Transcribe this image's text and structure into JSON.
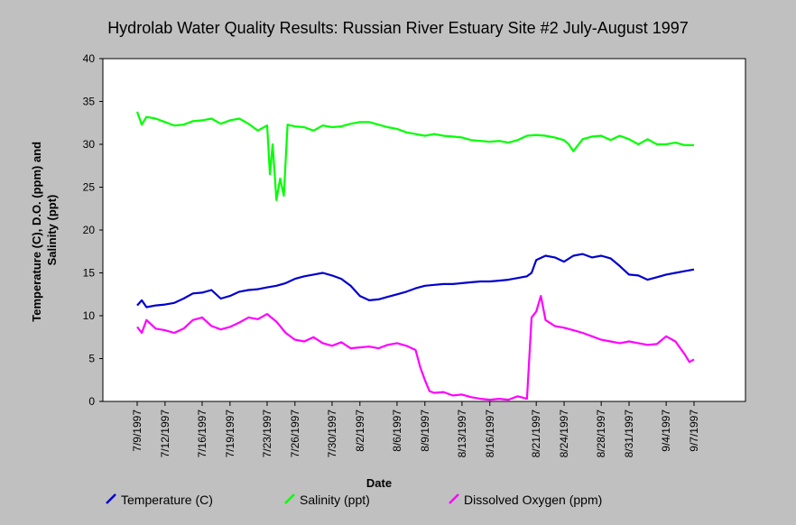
{
  "chart_data": {
    "type": "line",
    "title": "Hydrolab Water Quality Results: Russian River Estuary Site #2 July-August 1997",
    "xlabel": "Date",
    "ylabel_lines": [
      "Temperature (C), D.O. (ppm) and",
      "Salinity (ppt)"
    ],
    "ylim": [
      0,
      40
    ],
    "yticks": [
      "0",
      "5",
      "10",
      "15",
      "20",
      "25",
      "30",
      "35",
      "40"
    ],
    "xlim_days": [
      0,
      63
    ],
    "grid": false,
    "legend_position": "bottom",
    "xticks": [
      {
        "day": 0,
        "label": "7/9/1997"
      },
      {
        "day": 3,
        "label": "7/12/1997"
      },
      {
        "day": 7,
        "label": "7/16/1997"
      },
      {
        "day": 10,
        "label": "7/19/1997"
      },
      {
        "day": 14,
        "label": "7/23/1997"
      },
      {
        "day": 17,
        "label": "7/26/1997"
      },
      {
        "day": 21,
        "label": "7/30/1997"
      },
      {
        "day": 24,
        "label": "8/2/1997"
      },
      {
        "day": 28,
        "label": "8/6/1997"
      },
      {
        "day": 31,
        "label": "8/9/1997"
      },
      {
        "day": 35,
        "label": "8/13/1997"
      },
      {
        "day": 38,
        "label": "8/16/1997"
      },
      {
        "day": 43,
        "label": "8/21/1997"
      },
      {
        "day": 46,
        "label": "8/24/1997"
      },
      {
        "day": 50,
        "label": "8/28/1997"
      },
      {
        "day": 53,
        "label": "8/31/1997"
      },
      {
        "day": 57,
        "label": "9/4/1997"
      },
      {
        "day": 60,
        "label": "9/7/1997"
      }
    ],
    "series": [
      {
        "name": "Temperature (C)",
        "color": "#0000cc",
        "points": [
          [
            0,
            11.2
          ],
          [
            0.5,
            11.8
          ],
          [
            1,
            11.0
          ],
          [
            2,
            11.2
          ],
          [
            3,
            11.3
          ],
          [
            4,
            11.5
          ],
          [
            5,
            12.0
          ],
          [
            6,
            12.6
          ],
          [
            7,
            12.7
          ],
          [
            8,
            13.0
          ],
          [
            9,
            12.0
          ],
          [
            10,
            12.3
          ],
          [
            11,
            12.8
          ],
          [
            12,
            13.0
          ],
          [
            13,
            13.1
          ],
          [
            14,
            13.3
          ],
          [
            15,
            13.5
          ],
          [
            16,
            13.8
          ],
          [
            17,
            14.3
          ],
          [
            18,
            14.6
          ],
          [
            19,
            14.8
          ],
          [
            20,
            15.0
          ],
          [
            21,
            14.7
          ],
          [
            22,
            14.3
          ],
          [
            23,
            13.5
          ],
          [
            24,
            12.3
          ],
          [
            25,
            11.8
          ],
          [
            26,
            11.9
          ],
          [
            27,
            12.2
          ],
          [
            28,
            12.5
          ],
          [
            29,
            12.8
          ],
          [
            30,
            13.2
          ],
          [
            31,
            13.5
          ],
          [
            32,
            13.6
          ],
          [
            33,
            13.7
          ],
          [
            34,
            13.7
          ],
          [
            35,
            13.8
          ],
          [
            36,
            13.9
          ],
          [
            37,
            14.0
          ],
          [
            38,
            14.0
          ],
          [
            39,
            14.1
          ],
          [
            40,
            14.2
          ],
          [
            41,
            14.4
          ],
          [
            42,
            14.6
          ],
          [
            42.5,
            15.0
          ],
          [
            43,
            16.5
          ],
          [
            44,
            17.0
          ],
          [
            45,
            16.8
          ],
          [
            46,
            16.3
          ],
          [
            47,
            17.0
          ],
          [
            48,
            17.2
          ],
          [
            49,
            16.8
          ],
          [
            50,
            17.0
          ],
          [
            51,
            16.7
          ],
          [
            52,
            15.8
          ],
          [
            53,
            14.8
          ],
          [
            54,
            14.7
          ],
          [
            55,
            14.2
          ],
          [
            56,
            14.5
          ],
          [
            57,
            14.8
          ],
          [
            58,
            15.0
          ],
          [
            59,
            15.2
          ],
          [
            60,
            15.4
          ]
        ]
      },
      {
        "name": "Salinity (ppt)",
        "color": "#00ff00",
        "points": [
          [
            0,
            33.8
          ],
          [
            0.5,
            32.3
          ],
          [
            1,
            33.2
          ],
          [
            2,
            33.0
          ],
          [
            3,
            32.6
          ],
          [
            4,
            32.2
          ],
          [
            5,
            32.3
          ],
          [
            6,
            32.7
          ],
          [
            7,
            32.8
          ],
          [
            8,
            33.0
          ],
          [
            9,
            32.4
          ],
          [
            10,
            32.8
          ],
          [
            11,
            33.0
          ],
          [
            12,
            32.4
          ],
          [
            13,
            31.6
          ],
          [
            14,
            32.2
          ],
          [
            14.3,
            26.5
          ],
          [
            14.6,
            30.0
          ],
          [
            15,
            23.5
          ],
          [
            15.4,
            26.0
          ],
          [
            15.8,
            24.0
          ],
          [
            16.2,
            32.3
          ],
          [
            17,
            32.1
          ],
          [
            18,
            32.0
          ],
          [
            19,
            31.6
          ],
          [
            20,
            32.2
          ],
          [
            21,
            32.0
          ],
          [
            22,
            32.1
          ],
          [
            23,
            32.4
          ],
          [
            24,
            32.6
          ],
          [
            25,
            32.6
          ],
          [
            26,
            32.3
          ],
          [
            27,
            32.0
          ],
          [
            28,
            31.8
          ],
          [
            29,
            31.4
          ],
          [
            30,
            31.2
          ],
          [
            31,
            31.0
          ],
          [
            32,
            31.2
          ],
          [
            33,
            31.0
          ],
          [
            34,
            30.9
          ],
          [
            35,
            30.8
          ],
          [
            36,
            30.5
          ],
          [
            37,
            30.4
          ],
          [
            38,
            30.3
          ],
          [
            39,
            30.4
          ],
          [
            40,
            30.2
          ],
          [
            41,
            30.5
          ],
          [
            42,
            31.0
          ],
          [
            43,
            31.1
          ],
          [
            44,
            31.0
          ],
          [
            45,
            30.8
          ],
          [
            46,
            30.5
          ],
          [
            46.5,
            30.0
          ],
          [
            47,
            29.2
          ],
          [
            48,
            30.6
          ],
          [
            49,
            30.9
          ],
          [
            50,
            31.0
          ],
          [
            51,
            30.5
          ],
          [
            52,
            31.0
          ],
          [
            53,
            30.6
          ],
          [
            54,
            30.0
          ],
          [
            55,
            30.6
          ],
          [
            56,
            30.0
          ],
          [
            57,
            30.0
          ],
          [
            58,
            30.2
          ],
          [
            59,
            29.9
          ],
          [
            60,
            29.9
          ]
        ]
      },
      {
        "name": "Dissolved Oxygen (ppm)",
        "color": "#ff00ff",
        "points": [
          [
            0,
            8.7
          ],
          [
            0.5,
            8.0
          ],
          [
            1,
            9.5
          ],
          [
            2,
            8.5
          ],
          [
            3,
            8.3
          ],
          [
            4,
            8.0
          ],
          [
            5,
            8.5
          ],
          [
            6,
            9.5
          ],
          [
            7,
            9.8
          ],
          [
            8,
            8.8
          ],
          [
            9,
            8.4
          ],
          [
            10,
            8.7
          ],
          [
            11,
            9.2
          ],
          [
            12,
            9.8
          ],
          [
            13,
            9.6
          ],
          [
            14,
            10.2
          ],
          [
            15,
            9.3
          ],
          [
            16,
            8.0
          ],
          [
            17,
            7.2
          ],
          [
            18,
            7.0
          ],
          [
            19,
            7.5
          ],
          [
            20,
            6.8
          ],
          [
            21,
            6.5
          ],
          [
            22,
            6.9
          ],
          [
            23,
            6.2
          ],
          [
            24,
            6.3
          ],
          [
            25,
            6.4
          ],
          [
            26,
            6.2
          ],
          [
            27,
            6.6
          ],
          [
            28,
            6.8
          ],
          [
            29,
            6.5
          ],
          [
            30,
            6.0
          ],
          [
            30.5,
            4.0
          ],
          [
            31,
            2.5
          ],
          [
            31.5,
            1.2
          ],
          [
            32,
            1.0
          ],
          [
            33,
            1.1
          ],
          [
            34,
            0.7
          ],
          [
            35,
            0.8
          ],
          [
            36,
            0.5
          ],
          [
            37,
            0.3
          ],
          [
            38,
            0.2
          ],
          [
            39,
            0.3
          ],
          [
            40,
            0.2
          ],
          [
            41,
            0.6
          ],
          [
            42,
            0.3
          ],
          [
            42.5,
            9.8
          ],
          [
            43,
            10.5
          ],
          [
            43.5,
            12.3
          ],
          [
            44,
            9.5
          ],
          [
            45,
            8.8
          ],
          [
            46,
            8.6
          ],
          [
            47,
            8.3
          ],
          [
            48,
            8.0
          ],
          [
            49,
            7.6
          ],
          [
            50,
            7.2
          ],
          [
            51,
            7.0
          ],
          [
            52,
            6.8
          ],
          [
            53,
            7.0
          ],
          [
            54,
            6.8
          ],
          [
            55,
            6.6
          ],
          [
            56,
            6.7
          ],
          [
            57,
            7.6
          ],
          [
            58,
            7.0
          ],
          [
            59,
            5.5
          ],
          [
            59.5,
            4.6
          ],
          [
            60,
            4.9
          ]
        ]
      }
    ]
  }
}
